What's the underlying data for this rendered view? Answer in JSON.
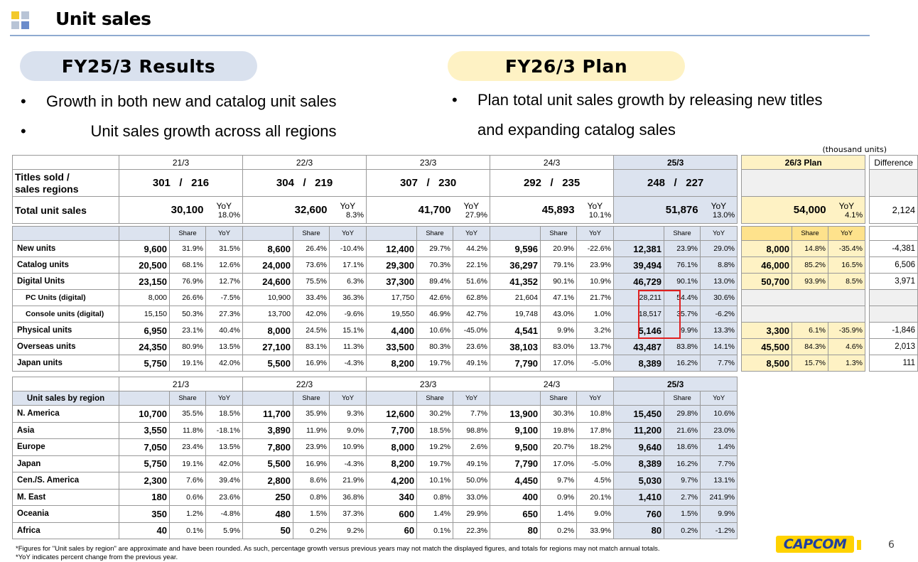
{
  "header": {
    "title": "Unit sales"
  },
  "colors": {
    "logo_yellow": "#f3c92a",
    "logo_blue": "#6b8ccb",
    "logo_gray": "#b8c4d6",
    "divider": "#8faad0",
    "highlight": "#e02020"
  },
  "left": {
    "pill": "FY25/3 Results",
    "bullets": [
      "Growth in both new and catalog unit sales",
      "Unit sales growth across all regions"
    ]
  },
  "right": {
    "pill": "FY26/3 Plan",
    "bullets": [
      "Plan total unit sales growth by releasing new titles",
      "and expanding catalog sales"
    ]
  },
  "units_note": "(thousand units)",
  "years": [
    "21/3",
    "22/3",
    "23/3",
    "24/3",
    "25/3"
  ],
  "plan_label": "26/3  Plan",
  "diff_label": "Difference",
  "share_label": "Share",
  "yoy_label": "YoY",
  "titles_label": "Titles sold /\nsales regions",
  "titles": [
    {
      "a": "301",
      "b": "216"
    },
    {
      "a": "304",
      "b": "219"
    },
    {
      "a": "307",
      "b": "230"
    },
    {
      "a": "292",
      "b": "235"
    },
    {
      "a": "248",
      "b": "227"
    }
  ],
  "slash": "/",
  "total_label": "Total unit sales",
  "total": [
    {
      "v": "30,100",
      "y": "18.0%"
    },
    {
      "v": "32,600",
      "y": "8.3%"
    },
    {
      "v": "41,700",
      "y": "27.9%"
    },
    {
      "v": "45,893",
      "y": "10.1%"
    },
    {
      "v": "51,876",
      "y": "13.0%"
    }
  ],
  "total_plan": {
    "v": "54,000",
    "y": "4.1%"
  },
  "total_diff": "2,124",
  "breakdown": [
    {
      "label": "New units",
      "bold": true,
      "cells": [
        [
          "9,600",
          "31.9%",
          "31.5%"
        ],
        [
          "8,600",
          "26.4%",
          "-10.4%"
        ],
        [
          "12,400",
          "29.7%",
          "44.2%"
        ],
        [
          "9,596",
          "20.9%",
          "-22.6%"
        ],
        [
          "12,381",
          "23.9%",
          "29.0%"
        ]
      ],
      "plan": [
        "8,000",
        "14.8%",
        "-35.4%"
      ],
      "diff": "-4,381"
    },
    {
      "label": "Catalog units",
      "bold": true,
      "cells": [
        [
          "20,500",
          "68.1%",
          "12.6%"
        ],
        [
          "24,000",
          "73.6%",
          "17.1%"
        ],
        [
          "29,300",
          "70.3%",
          "22.1%"
        ],
        [
          "36,297",
          "79.1%",
          "23.9%"
        ],
        [
          "39,494",
          "76.1%",
          "8.8%"
        ]
      ],
      "plan": [
        "46,000",
        "85.2%",
        "16.5%"
      ],
      "diff": "6,506"
    },
    {
      "label": "Digital Units",
      "bold": true,
      "cells": [
        [
          "23,150",
          "76.9%",
          "12.7%"
        ],
        [
          "24,600",
          "75.5%",
          "6.3%"
        ],
        [
          "37,300",
          "89.4%",
          "51.6%"
        ],
        [
          "41,352",
          "90.1%",
          "10.9%"
        ],
        [
          "46,729",
          "90.1%",
          "13.0%"
        ]
      ],
      "plan": [
        "50,700",
        "93.9%",
        "8.5%"
      ],
      "diff": "3,971"
    },
    {
      "label": "PC Units (digital)",
      "bold": false,
      "cells": [
        [
          "8,000",
          "26.6%",
          "-7.5%"
        ],
        [
          "10,900",
          "33.4%",
          "36.3%"
        ],
        [
          "17,750",
          "42.6%",
          "62.8%"
        ],
        [
          "21,604",
          "47.1%",
          "21.7%"
        ],
        [
          "28,211",
          "54.4%",
          "30.6%"
        ]
      ],
      "plan": null,
      "diff": ""
    },
    {
      "label": "Console units (digital)",
      "bold": false,
      "cells": [
        [
          "15,150",
          "50.3%",
          "27.3%"
        ],
        [
          "13,700",
          "42.0%",
          "-9.6%"
        ],
        [
          "19,550",
          "46.9%",
          "42.7%"
        ],
        [
          "19,748",
          "43.0%",
          "1.0%"
        ],
        [
          "18,517",
          "35.7%",
          "-6.2%"
        ]
      ],
      "plan": null,
      "diff": ""
    },
    {
      "label": "Physical units",
      "bold": true,
      "cells": [
        [
          "6,950",
          "23.1%",
          "40.4%"
        ],
        [
          "8,000",
          "24.5%",
          "15.1%"
        ],
        [
          "4,400",
          "10.6%",
          "-45.0%"
        ],
        [
          "4,541",
          "9.9%",
          "3.2%"
        ],
        [
          "5,146",
          "9.9%",
          "13.3%"
        ]
      ],
      "plan": [
        "3,300",
        "6.1%",
        "-35.9%"
      ],
      "diff": "-1,846"
    },
    {
      "label": "Overseas units",
      "bold": true,
      "cells": [
        [
          "24,350",
          "80.9%",
          "13.5%"
        ],
        [
          "27,100",
          "83.1%",
          "11.3%"
        ],
        [
          "33,500",
          "80.3%",
          "23.6%"
        ],
        [
          "38,103",
          "83.0%",
          "13.7%"
        ],
        [
          "43,487",
          "83.8%",
          "14.1%"
        ]
      ],
      "plan": [
        "45,500",
        "84.3%",
        "4.6%"
      ],
      "diff": "2,013"
    },
    {
      "label": "Japan units",
      "bold": true,
      "cells": [
        [
          "5,750",
          "19.1%",
          "42.0%"
        ],
        [
          "5,500",
          "16.9%",
          "-4.3%"
        ],
        [
          "8,200",
          "19.7%",
          "49.1%"
        ],
        [
          "7,790",
          "17.0%",
          "-5.0%"
        ],
        [
          "8,389",
          "16.2%",
          "7.7%"
        ]
      ],
      "plan": [
        "8,500",
        "15.7%",
        "1.3%"
      ],
      "diff": "111"
    }
  ],
  "region_title": "Unit sales by region",
  "regions": [
    {
      "label": "N. America",
      "cells": [
        [
          "10,700",
          "35.5%",
          "18.5%"
        ],
        [
          "11,700",
          "35.9%",
          "9.3%"
        ],
        [
          "12,600",
          "30.2%",
          "7.7%"
        ],
        [
          "13,900",
          "30.3%",
          "10.8%"
        ],
        [
          "15,450",
          "29.8%",
          "10.6%"
        ]
      ]
    },
    {
      "label": "Asia",
      "cells": [
        [
          "3,550",
          "11.8%",
          "-18.1%"
        ],
        [
          "3,890",
          "11.9%",
          "9.0%"
        ],
        [
          "7,700",
          "18.5%",
          "98.8%"
        ],
        [
          "9,100",
          "19.8%",
          "17.8%"
        ],
        [
          "11,200",
          "21.6%",
          "23.0%"
        ]
      ]
    },
    {
      "label": "Europe",
      "cells": [
        [
          "7,050",
          "23.4%",
          "13.5%"
        ],
        [
          "7,800",
          "23.9%",
          "10.9%"
        ],
        [
          "8,000",
          "19.2%",
          "2.6%"
        ],
        [
          "9,500",
          "20.7%",
          "18.2%"
        ],
        [
          "9,640",
          "18.6%",
          "1.4%"
        ]
      ]
    },
    {
      "label": "Japan",
      "cells": [
        [
          "5,750",
          "19.1%",
          "42.0%"
        ],
        [
          "5,500",
          "16.9%",
          "-4.3%"
        ],
        [
          "8,200",
          "19.7%",
          "49.1%"
        ],
        [
          "7,790",
          "17.0%",
          "-5.0%"
        ],
        [
          "8,389",
          "16.2%",
          "7.7%"
        ]
      ]
    },
    {
      "label": "Cen./S. America",
      "cells": [
        [
          "2,300",
          "7.6%",
          "39.4%"
        ],
        [
          "2,800",
          "8.6%",
          "21.9%"
        ],
        [
          "4,200",
          "10.1%",
          "50.0%"
        ],
        [
          "4,450",
          "9.7%",
          "4.5%"
        ],
        [
          "5,030",
          "9.7%",
          "13.1%"
        ]
      ]
    },
    {
      "label": "M. East",
      "cells": [
        [
          "180",
          "0.6%",
          "23.6%"
        ],
        [
          "250",
          "0.8%",
          "36.8%"
        ],
        [
          "340",
          "0.8%",
          "33.0%"
        ],
        [
          "400",
          "0.9%",
          "20.1%"
        ],
        [
          "1,410",
          "2.7%",
          "241.9%"
        ]
      ]
    },
    {
      "label": "Oceania",
      "cells": [
        [
          "350",
          "1.2%",
          "-4.8%"
        ],
        [
          "480",
          "1.5%",
          "37.3%"
        ],
        [
          "600",
          "1.4%",
          "29.9%"
        ],
        [
          "650",
          "1.4%",
          "9.0%"
        ],
        [
          "760",
          "1.5%",
          "9.9%"
        ]
      ]
    },
    {
      "label": "Africa",
      "cells": [
        [
          "40",
          "0.1%",
          "5.9%"
        ],
        [
          "50",
          "0.2%",
          "9.2%"
        ],
        [
          "60",
          "0.1%",
          "22.3%"
        ],
        [
          "80",
          "0.2%",
          "33.9%"
        ],
        [
          "80",
          "0.2%",
          "-1.2%"
        ]
      ]
    }
  ],
  "footnotes": [
    "*Figures for \"Unit sales by region\" are approximate and have been rounded. As such, percentage growth versus previous years may not match the displayed figures, and totals for regions may not match annual totals.",
    "*YoY indicates percent change from the previous year."
  ],
  "brand": "CAPCOM",
  "page_number": "6"
}
